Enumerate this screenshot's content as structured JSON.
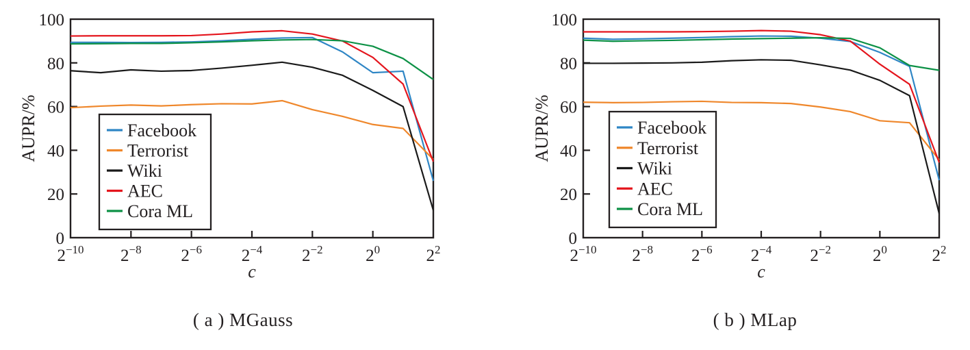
{
  "figure": {
    "background": "#ffffff",
    "text_color": "#231f20",
    "axis_color": "#231f20"
  },
  "chart_data": [
    {
      "type": "line",
      "title": "( a ) MGauss",
      "xlabel": "c",
      "ylabel": "AUPR/%",
      "xscale": "log2",
      "x_axis_note": "x values are powers of two: 2^exponent",
      "xlim_exponents": [
        -10,
        2
      ],
      "ylim": [
        0,
        100
      ],
      "yticks": [
        0,
        20,
        40,
        60,
        80,
        100
      ],
      "xtick_exponents": [
        -10,
        -8,
        -6,
        -4,
        -2,
        0,
        2
      ],
      "x_exponents": [
        -10,
        -9,
        -8,
        -7,
        -6,
        -5,
        -4,
        -3,
        -2,
        -1,
        0,
        1,
        2
      ],
      "legend_position": "lower-left-inside",
      "grid": false,
      "series": [
        {
          "name": "Facebook",
          "color": "#2f86c5",
          "values": [
            89.4,
            89.4,
            89.3,
            89.4,
            89.6,
            90.1,
            90.8,
            91.4,
            91.6,
            85.0,
            75.5,
            76.2,
            26.0
          ]
        },
        {
          "name": "Terrorist",
          "color": "#ef872b",
          "values": [
            59.5,
            60.2,
            60.7,
            60.3,
            60.9,
            61.3,
            61.2,
            62.7,
            58.6,
            55.5,
            51.8,
            50.0,
            35.8
          ]
        },
        {
          "name": "Wiki",
          "color": "#1a1a1a",
          "values": [
            76.4,
            75.5,
            76.8,
            76.2,
            76.5,
            77.6,
            78.9,
            80.3,
            78.0,
            74.3,
            67.4,
            60.0,
            12.5
          ]
        },
        {
          "name": "AEC",
          "color": "#e4151d",
          "values": [
            92.3,
            92.4,
            92.4,
            92.4,
            92.5,
            93.2,
            94.2,
            94.7,
            93.2,
            90.0,
            82.5,
            70.3,
            34.8
          ]
        },
        {
          "name": "Cora ML",
          "color": "#0d9146",
          "values": [
            88.7,
            88.8,
            88.9,
            88.9,
            89.2,
            89.6,
            90.1,
            90.5,
            90.7,
            90.1,
            87.6,
            82.0,
            72.4
          ]
        }
      ]
    },
    {
      "type": "line",
      "title": "( b ) MLap",
      "xlabel": "c",
      "ylabel": "AUPR/%",
      "xscale": "log2",
      "x_axis_note": "x values are powers of two: 2^exponent",
      "xlim_exponents": [
        -10,
        2
      ],
      "ylim": [
        0,
        100
      ],
      "yticks": [
        0,
        20,
        40,
        60,
        80,
        100
      ],
      "xtick_exponents": [
        -10,
        -8,
        -6,
        -4,
        -2,
        0,
        2
      ],
      "x_exponents": [
        -10,
        -9,
        -8,
        -7,
        -6,
        -5,
        -4,
        -3,
        -2,
        -1,
        0,
        1,
        2
      ],
      "legend_position": "lower-left-inside",
      "grid": false,
      "series": [
        {
          "name": "Facebook",
          "color": "#2f86c5",
          "values": [
            91.3,
            90.8,
            91.0,
            91.3,
            91.6,
            92.0,
            92.3,
            92.2,
            91.3,
            89.8,
            84.8,
            78.4,
            26.3
          ]
        },
        {
          "name": "Terrorist",
          "color": "#ef872b",
          "values": [
            62.0,
            61.8,
            61.9,
            62.2,
            62.4,
            61.9,
            61.8,
            61.4,
            59.8,
            57.7,
            53.5,
            52.6,
            35.6
          ]
        },
        {
          "name": "Wiki",
          "color": "#1a1a1a",
          "values": [
            79.8,
            79.8,
            79.9,
            80.0,
            80.3,
            81.0,
            81.4,
            81.2,
            79.1,
            76.7,
            72.0,
            65.0,
            11.0
          ]
        },
        {
          "name": "AEC",
          "color": "#e4151d",
          "values": [
            94.2,
            94.2,
            94.2,
            94.2,
            94.3,
            94.5,
            94.8,
            94.5,
            92.9,
            90.0,
            79.4,
            70.2,
            34.4
          ]
        },
        {
          "name": "Cora ML",
          "color": "#0d9146",
          "values": [
            90.4,
            89.9,
            90.1,
            90.3,
            90.6,
            90.9,
            91.1,
            91.3,
            91.5,
            91.2,
            86.9,
            78.8,
            76.6
          ]
        }
      ]
    }
  ]
}
